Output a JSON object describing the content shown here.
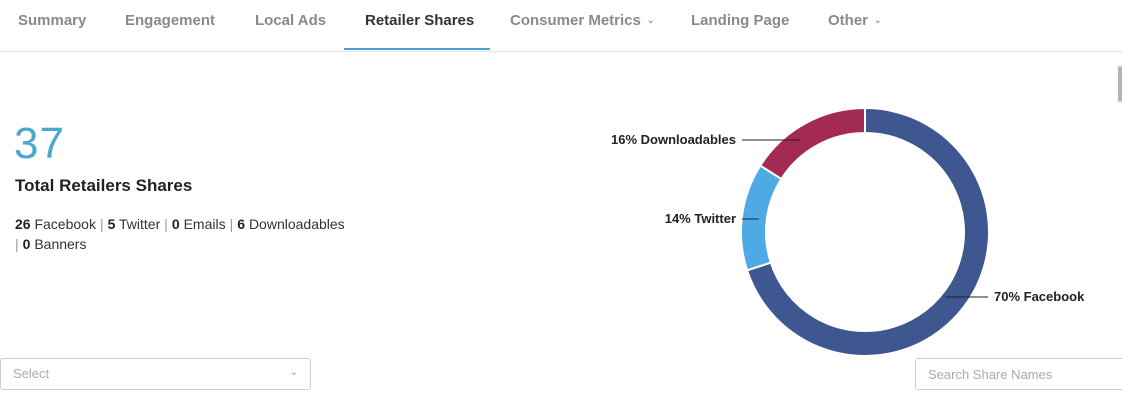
{
  "tabs": [
    {
      "label": "Summary"
    },
    {
      "label": "Engagement"
    },
    {
      "label": "Local Ads"
    },
    {
      "label": "Retailer Shares"
    },
    {
      "label": "Consumer Metrics"
    },
    {
      "label": "Landing Page"
    },
    {
      "label": "Other"
    }
  ],
  "summary": {
    "total": "37",
    "total_label": "Total Retailers Shares",
    "facebook_count": "26",
    "facebook_label": "Facebook",
    "twitter_count": "5",
    "twitter_label": "Twitter",
    "emails_count": "0",
    "emails_label": "Emails",
    "downloadables_count": "6",
    "downloadables_label": "Downloadables",
    "banners_count": "0",
    "banners_label": "Banners"
  },
  "filters": {
    "select_placeholder": "Select",
    "search_placeholder": "Search Share Names"
  },
  "colors": {
    "accent": "#4aa8cf",
    "facebook": "#3e5791",
    "twitter": "#4daae4",
    "downloadables": "#a22a55"
  },
  "chart_data": {
    "type": "pie",
    "categories": [
      "Facebook",
      "Twitter",
      "Downloadables"
    ],
    "values": [
      70,
      14,
      16
    ],
    "labels": [
      "70% Facebook",
      "14% Twitter",
      "16% Downloadables"
    ],
    "colors": [
      "#3e5791",
      "#4daae4",
      "#a22a55"
    ]
  }
}
